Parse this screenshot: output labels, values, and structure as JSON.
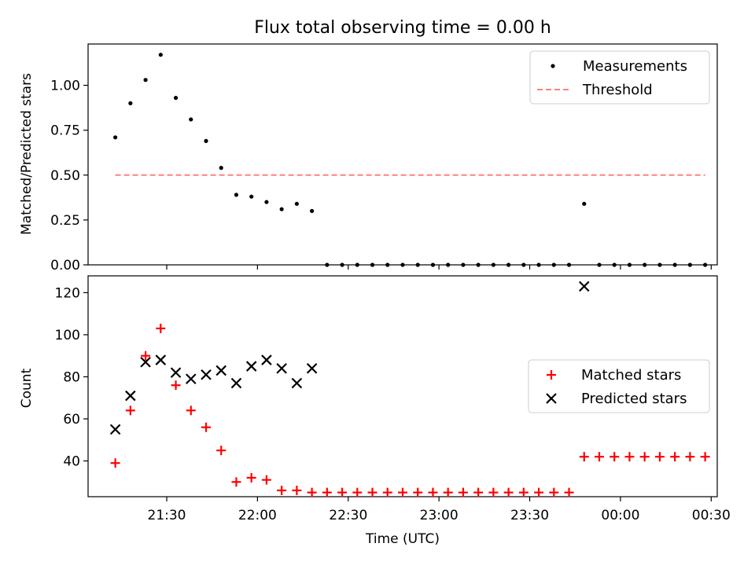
{
  "figure": {
    "title": "Flux total observing time = 0.00 h"
  },
  "chart_data": [
    {
      "type": "scatter",
      "title": "Flux total observing time = 0.00 h",
      "xlabel": "",
      "ylabel": "Matched/Predicted stars",
      "xlim": [
        "21:04",
        "00:32"
      ],
      "ylim": [
        0,
        1.23
      ],
      "y_ticks": [
        0.0,
        0.25,
        0.5,
        0.75,
        1.0
      ],
      "y_tick_labels": [
        "0.00",
        "0.25",
        "0.50",
        "0.75",
        "1.00"
      ],
      "legend_position": "top-right",
      "series": [
        {
          "name": "Measurements",
          "marker": "dot",
          "color": "#000000",
          "points": [
            [
              "21:13",
              0.71
            ],
            [
              "21:18",
              0.9
            ],
            [
              "21:23",
              1.03
            ],
            [
              "21:28",
              1.17
            ],
            [
              "21:33",
              0.93
            ],
            [
              "21:38",
              0.81
            ],
            [
              "21:43",
              0.69
            ],
            [
              "21:48",
              0.54
            ],
            [
              "21:53",
              0.39
            ],
            [
              "21:58",
              0.38
            ],
            [
              "22:03",
              0.35
            ],
            [
              "22:08",
              0.31
            ],
            [
              "22:13",
              0.34
            ],
            [
              "22:18",
              0.3
            ],
            [
              "22:23",
              0.0
            ],
            [
              "22:28",
              0.0
            ],
            [
              "22:33",
              0.0
            ],
            [
              "22:38",
              0.0
            ],
            [
              "22:43",
              0.0
            ],
            [
              "22:48",
              0.0
            ],
            [
              "22:53",
              0.0
            ],
            [
              "22:58",
              0.0
            ],
            [
              "23:03",
              0.0
            ],
            [
              "23:08",
              0.0
            ],
            [
              "23:13",
              0.0
            ],
            [
              "23:18",
              0.0
            ],
            [
              "23:23",
              0.0
            ],
            [
              "23:28",
              0.0
            ],
            [
              "23:33",
              0.0
            ],
            [
              "23:38",
              0.0
            ],
            [
              "23:43",
              0.0
            ],
            [
              "23:48",
              0.34
            ],
            [
              "23:53",
              0.0
            ],
            [
              "23:58",
              0.0
            ],
            [
              "00:03",
              0.0
            ],
            [
              "00:08",
              0.0
            ],
            [
              "00:13",
              0.0
            ],
            [
              "00:18",
              0.0
            ],
            [
              "00:23",
              0.0
            ],
            [
              "00:28",
              0.0
            ]
          ]
        },
        {
          "name": "Threshold",
          "type": "line",
          "dash": true,
          "color": "#ff8080",
          "points": [
            [
              "21:13",
              0.5
            ],
            [
              "00:28",
              0.5
            ]
          ]
        }
      ]
    },
    {
      "type": "scatter",
      "title": "",
      "xlabel": "Time (UTC)",
      "ylabel": "Count",
      "xlim": [
        "21:04",
        "00:32"
      ],
      "ylim": [
        23,
        128
      ],
      "y_ticks": [
        40,
        60,
        80,
        100,
        120
      ],
      "y_tick_labels": [
        "40",
        "60",
        "80",
        "100",
        "120"
      ],
      "x_ticks": [
        "21:30",
        "22:00",
        "22:30",
        "23:00",
        "23:30",
        "00:00",
        "00:30"
      ],
      "x_tick_labels": [
        "21:30",
        "22:00",
        "22:30",
        "23:00",
        "23:30",
        "00:00",
        "00:30"
      ],
      "legend_position": "center-right",
      "series": [
        {
          "name": "Matched stars",
          "marker": "plus",
          "color": "#ff0000",
          "points": [
            [
              "21:13",
              39
            ],
            [
              "21:18",
              64
            ],
            [
              "21:23",
              90
            ],
            [
              "21:28",
              103
            ],
            [
              "21:33",
              76
            ],
            [
              "21:38",
              64
            ],
            [
              "21:43",
              56
            ],
            [
              "21:48",
              45
            ],
            [
              "21:53",
              30
            ],
            [
              "21:58",
              32
            ],
            [
              "22:03",
              31
            ],
            [
              "22:08",
              26
            ],
            [
              "22:13",
              26
            ],
            [
              "22:18",
              25
            ],
            [
              "22:23",
              25
            ],
            [
              "22:28",
              25
            ],
            [
              "22:33",
              25
            ],
            [
              "22:38",
              25
            ],
            [
              "22:43",
              25
            ],
            [
              "22:48",
              25
            ],
            [
              "22:53",
              25
            ],
            [
              "22:58",
              25
            ],
            [
              "23:03",
              25
            ],
            [
              "23:08",
              25
            ],
            [
              "23:13",
              25
            ],
            [
              "23:18",
              25
            ],
            [
              "23:23",
              25
            ],
            [
              "23:28",
              25
            ],
            [
              "23:33",
              25
            ],
            [
              "23:38",
              25
            ],
            [
              "23:43",
              25
            ],
            [
              "23:48",
              42
            ],
            [
              "23:53",
              42
            ],
            [
              "23:58",
              42
            ],
            [
              "00:03",
              42
            ],
            [
              "00:08",
              42
            ],
            [
              "00:13",
              42
            ],
            [
              "00:18",
              42
            ],
            [
              "00:23",
              42
            ],
            [
              "00:28",
              42
            ]
          ]
        },
        {
          "name": "Predicted stars",
          "marker": "x",
          "color": "#000000",
          "points": [
            [
              "21:13",
              55
            ],
            [
              "21:18",
              71
            ],
            [
              "21:23",
              87
            ],
            [
              "21:28",
              88
            ],
            [
              "21:33",
              82
            ],
            [
              "21:38",
              79
            ],
            [
              "21:43",
              81
            ],
            [
              "21:48",
              83
            ],
            [
              "21:53",
              77
            ],
            [
              "21:58",
              85
            ],
            [
              "22:03",
              88
            ],
            [
              "22:08",
              84
            ],
            [
              "22:13",
              77
            ],
            [
              "22:18",
              84
            ],
            [
              "23:48",
              123
            ]
          ]
        }
      ]
    }
  ],
  "colors": {
    "measurements": "#000000",
    "threshold": "#ff8080",
    "matched": "#ff0000",
    "predicted": "#000000"
  }
}
